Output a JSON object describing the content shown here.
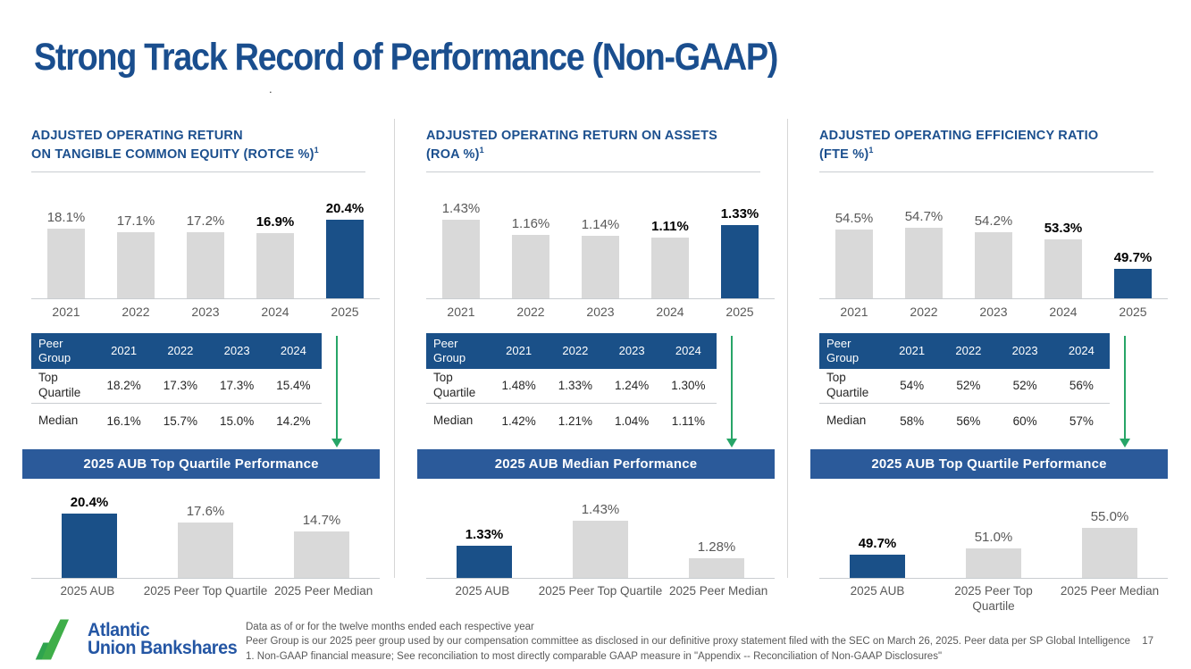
{
  "slide": {
    "title": "Strong Track Record of Performance (Non-GAAP)",
    "title_dot": ".",
    "page_number": "17",
    "logo": {
      "line1": "Atlantic",
      "line2": "Union Bankshares"
    },
    "footnotes": [
      "Data as of or for the twelve months ended each respective year",
      "Peer Group is our 2025 peer group used by our compensation committee as disclosed in our definitive proxy statement filed with the SEC on March 26, 2025. Peer data per SP Global Intelligence",
      "1.   Non-GAAP financial measure; See reconciliation to most directly comparable GAAP measure in \"Appendix -- Reconciliation of Non-GAAP Disclosures\""
    ]
  },
  "colors": {
    "accent_blue": "#1A5088",
    "banner_blue": "#2B5A9A",
    "table_header_blue": "#1A5088",
    "bar_gray": "#D9D9D9",
    "heading_navy": "#1B4F8E",
    "text_gray": "#595959",
    "arrow_green": "#27A567",
    "logo_green": "#3FAE49",
    "logo_blue": "#2456A4"
  },
  "sections": [
    {
      "heading_line1": "ADJUSTED OPERATING RETURN",
      "heading_line2": "ON TANGIBLE COMMON EQUITY (ROTCE %)",
      "heading_sup": "1",
      "table": {
        "header": [
          "Peer Group",
          "2021",
          "2022",
          "2023",
          "2024"
        ],
        "rows": [
          {
            "label": "Top Quartile",
            "values": [
              "18.2%",
              "17.3%",
              "17.3%",
              "15.4%"
            ]
          },
          {
            "label": "Median",
            "values": [
              "16.1%",
              "15.7%",
              "15.0%",
              "14.2%"
            ]
          }
        ]
      },
      "banner": "2025 AUB Top Quartile Performance"
    },
    {
      "heading_line1": "ADJUSTED OPERATING RETURN ON ASSETS",
      "heading_line2": "(ROA %)",
      "heading_sup": "1",
      "table": {
        "header": [
          "Peer Group",
          "2021",
          "2022",
          "2023",
          "2024"
        ],
        "rows": [
          {
            "label": "Top Quartile",
            "values": [
              "1.48%",
              "1.33%",
              "1.24%",
              "1.30%"
            ]
          },
          {
            "label": "Median",
            "values": [
              "1.42%",
              "1.21%",
              "1.04%",
              "1.11%"
            ]
          }
        ]
      },
      "banner": "2025 AUB Median Performance"
    },
    {
      "heading_line1": "ADJUSTED OPERATING EFFICIENCY RATIO",
      "heading_line2": "(FTE %)",
      "heading_sup": "1",
      "table": {
        "header": [
          "Peer Group",
          "2021",
          "2022",
          "2023",
          "2024"
        ],
        "rows": [
          {
            "label": "Top Quartile",
            "values": [
              "54%",
              "52%",
              "52%",
              "56%"
            ]
          },
          {
            "label": "Median",
            "values": [
              "58%",
              "56%",
              "60%",
              "57%"
            ]
          }
        ]
      },
      "banner": "2025 AUB Top Quartile Performance"
    }
  ],
  "chart_data": [
    {
      "type": "bar",
      "title": "Adjusted Operating Return on Tangible Common Equity (ROTCE %)",
      "categories": [
        "2021",
        "2022",
        "2023",
        "2024",
        "2025"
      ],
      "values": [
        18.1,
        17.1,
        17.2,
        16.9,
        20.4
      ],
      "labels": [
        "18.1%",
        "17.1%",
        "17.2%",
        "16.9%",
        "20.4%"
      ],
      "ylim": [
        0,
        22
      ],
      "highlight_index": 4,
      "bold_label_indices": [
        3,
        4
      ],
      "xlabel": "",
      "ylabel": "",
      "grid": false
    },
    {
      "type": "bar",
      "title": "Adjusted Operating Return on Assets (ROA %)",
      "categories": [
        "2021",
        "2022",
        "2023",
        "2024",
        "2025"
      ],
      "values": [
        1.43,
        1.16,
        1.14,
        1.11,
        1.33
      ],
      "labels": [
        "1.43%",
        "1.16%",
        "1.14%",
        "1.11%",
        "1.33%"
      ],
      "ylim": [
        0,
        1.55
      ],
      "highlight_index": 4,
      "bold_label_indices": [
        3,
        4
      ],
      "xlabel": "",
      "ylabel": "",
      "grid": false
    },
    {
      "type": "bar",
      "title": "Adjusted Operating Efficiency Ratio (FTE %)",
      "categories": [
        "2021",
        "2022",
        "2023",
        "2024",
        "2025"
      ],
      "values": [
        54.5,
        54.7,
        54.2,
        53.3,
        49.7
      ],
      "labels": [
        "54.5%",
        "54.7%",
        "54.2%",
        "53.3%",
        "49.7%"
      ],
      "ylim": [
        46,
        56.5
      ],
      "highlight_index": 4,
      "bold_label_indices": [
        3,
        4
      ],
      "xlabel": "",
      "ylabel": "",
      "grid": false
    },
    {
      "type": "bar",
      "title": "",
      "categories": [
        "2025 AUB",
        "2025 Peer Top Quartile",
        "2025 Peer Median"
      ],
      "values": [
        20.4,
        17.6,
        14.7
      ],
      "labels": [
        "20.4%",
        "17.6%",
        "14.7%"
      ],
      "ylim": [
        0,
        22
      ],
      "highlight_index": 0,
      "bold_label_indices": [
        0
      ],
      "xlabel": "",
      "ylabel": "",
      "grid": false
    },
    {
      "type": "bar",
      "title": "",
      "categories": [
        "2025 AUB",
        "2025 Peer Top Quartile",
        "2025 Peer Median"
      ],
      "values": [
        1.33,
        1.43,
        1.28
      ],
      "labels": [
        "1.33%",
        "1.43%",
        "1.28%"
      ],
      "ylim": [
        1.2,
        1.48
      ],
      "highlight_index": 0,
      "bold_label_indices": [
        0
      ],
      "xlabel": "",
      "ylabel": "",
      "grid": false
    },
    {
      "type": "bar",
      "title": "",
      "categories": [
        "2025 AUB",
        "2025 Peer Top\nQuartile",
        "2025 Peer Median"
      ],
      "values": [
        49.7,
        51.0,
        55.0
      ],
      "labels": [
        "49.7%",
        "51.0%",
        "55.0%"
      ],
      "ylim": [
        45,
        59
      ],
      "highlight_index": 0,
      "bold_label_indices": [
        0
      ],
      "xlabel": "",
      "ylabel": "",
      "grid": false
    }
  ]
}
